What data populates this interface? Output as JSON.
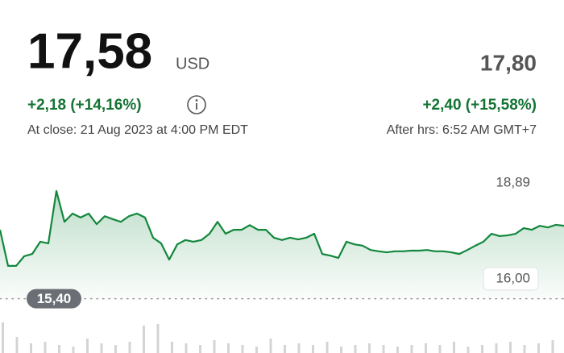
{
  "quote": {
    "price": "17,58",
    "currency": "USD",
    "change": "+2,18 (+14,16%)",
    "close_time": "At close: 21 Aug 2023 at 4:00 PM EDT",
    "after_price": "17,80",
    "after_change": "+2,40 (+15,58%)",
    "after_time": "After hrs: 6:52 AM GMT+7"
  },
  "chart_data": {
    "type": "line",
    "color": "#12873c",
    "values": [
      17.48,
      16.39,
      16.39,
      16.68,
      16.75,
      17.12,
      17.07,
      18.65,
      17.72,
      17.97,
      17.85,
      17.97,
      17.65,
      17.89,
      17.8,
      17.72,
      17.89,
      17.97,
      17.85,
      17.24,
      17.07,
      16.58,
      17.04,
      17.17,
      17.12,
      17.17,
      17.36,
      17.72,
      17.36,
      17.48,
      17.48,
      17.62,
      17.48,
      17.48,
      17.24,
      17.17,
      17.24,
      17.19,
      17.24,
      17.36,
      16.75,
      16.7,
      16.63,
      17.12,
      17.04,
      17.0,
      16.87,
      16.83,
      16.8,
      16.83,
      16.83,
      16.85,
      16.85,
      16.87,
      16.83,
      16.83,
      16.8,
      16.75,
      16.87,
      17.0,
      17.12,
      17.36,
      17.29,
      17.31,
      17.36,
      17.53,
      17.48,
      17.6,
      17.55,
      17.63,
      17.6
    ],
    "ylim": [
      15.05,
      19.55
    ],
    "yticks": [
      {
        "value": 18.89,
        "label": "18,89"
      },
      {
        "value": 16.0,
        "label": "16,00"
      }
    ],
    "reference": {
      "value": 15.4,
      "label": "15,40"
    },
    "volume": {
      "color": "#d4d4d4",
      "values": [
        38,
        20,
        12,
        14,
        10,
        8,
        18,
        12,
        10,
        14,
        34,
        36,
        14,
        12,
        10,
        16,
        12,
        10,
        8,
        18,
        10,
        12,
        10,
        14,
        8,
        10,
        12,
        10,
        8,
        10,
        12,
        10,
        14,
        8,
        10,
        12,
        14,
        10,
        12,
        16
      ]
    }
  }
}
